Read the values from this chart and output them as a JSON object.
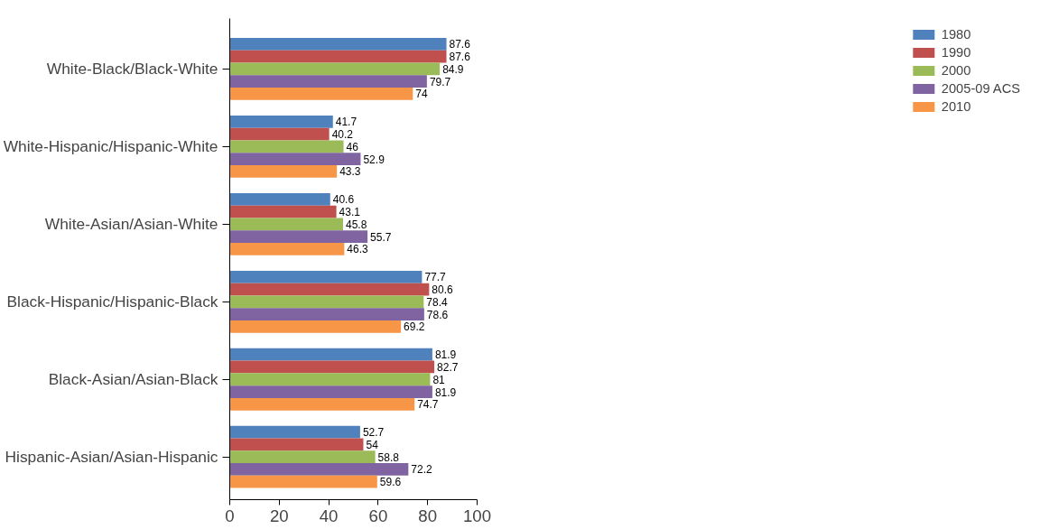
{
  "chart_data": {
    "type": "bar",
    "orientation": "horizontal",
    "categories": [
      "White-Black/Black-White",
      "White-Hispanic/Hispanic-White",
      "White-Asian/Asian-White",
      "Black-Hispanic/Hispanic-Black",
      "Black-Asian/Asian-Black",
      "Hispanic-Asian/Asian-Hispanic"
    ],
    "series": [
      {
        "name": "1980",
        "color": "#4f81bd",
        "values": [
          87.6,
          41.7,
          40.6,
          77.7,
          81.9,
          52.7
        ]
      },
      {
        "name": "1990",
        "color": "#c0504d",
        "values": [
          87.6,
          40.2,
          43.1,
          80.6,
          82.7,
          54
        ]
      },
      {
        "name": "2000",
        "color": "#9bbb59",
        "values": [
          84.9,
          46,
          45.8,
          78.4,
          81,
          58.8
        ]
      },
      {
        "name": "2005-09 ACS",
        "color": "#8064a2",
        "values": [
          79.7,
          52.9,
          55.7,
          78.6,
          81.9,
          72.2
        ]
      },
      {
        "name": "2010",
        "color": "#f79646",
        "values": [
          74,
          43.3,
          46.3,
          69.2,
          74.7,
          59.6
        ]
      }
    ],
    "xlim": [
      0,
      100
    ],
    "xticks": [
      0,
      20,
      40,
      60,
      80,
      100
    ],
    "data_labels": true,
    "legend": "right",
    "grid": false
  }
}
